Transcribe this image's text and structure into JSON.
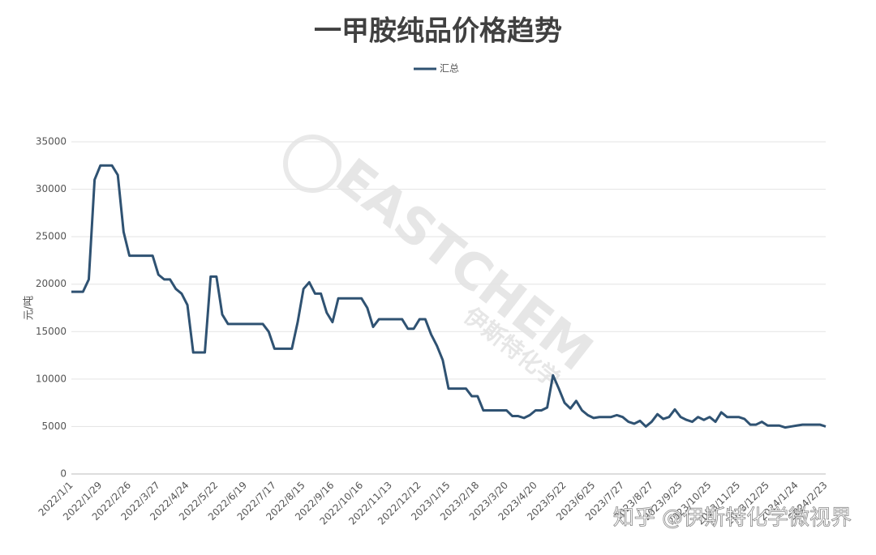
{
  "chart_data": {
    "type": "line",
    "title": "一甲胺纯品价格趋势",
    "y_label": "元/吨",
    "watermark": "EASTCHEM",
    "watermark_cn": "伊斯特化学",
    "credit": "知乎 @伊斯特化学微视界",
    "categories": [
      "2022/1/1",
      null,
      null,
      null,
      null,
      "2022/1/29",
      null,
      null,
      null,
      null,
      "2022/2/26",
      null,
      null,
      null,
      null,
      "2022/3/27",
      null,
      null,
      null,
      null,
      "2022/4/24",
      null,
      null,
      null,
      null,
      "2022/5/22",
      null,
      null,
      null,
      null,
      "2022/6/19",
      null,
      null,
      null,
      null,
      "2022/7/17",
      null,
      null,
      null,
      null,
      "2022/8/15",
      null,
      null,
      null,
      null,
      "2022/9/16",
      null,
      null,
      null,
      null,
      "2022/10/16",
      null,
      null,
      null,
      null,
      "2022/11/13",
      null,
      null,
      null,
      null,
      "2022/12/12",
      null,
      null,
      null,
      null,
      "2023/1/15",
      null,
      null,
      null,
      null,
      "2023/2/18",
      null,
      null,
      null,
      null,
      "2023/3/20",
      null,
      null,
      null,
      null,
      "2023/4/20",
      null,
      null,
      null,
      null,
      "2023/5/22",
      null,
      null,
      null,
      null,
      "2023/6/25",
      null,
      null,
      null,
      null,
      "2023/7/27",
      null,
      null,
      null,
      null,
      "2023/8/27",
      null,
      null,
      null,
      null,
      "2023/9/25",
      null,
      null,
      null,
      null,
      "2023/10/25",
      null,
      null,
      null,
      null,
      "2023/11/25",
      null,
      null,
      null,
      null,
      "2023/12/25",
      null,
      null,
      null,
      null,
      "2024/1/24",
      null,
      null,
      null,
      null,
      "2024/2/23"
    ],
    "series": [
      {
        "name": "汇总",
        "color": "#2f5272",
        "values": [
          19200,
          19200,
          19200,
          20500,
          31000,
          32500,
          32500,
          32500,
          31500,
          25500,
          23000,
          23000,
          23000,
          23000,
          23000,
          21000,
          20500,
          20500,
          19500,
          19000,
          17800,
          12800,
          12800,
          12800,
          20800,
          20800,
          16800,
          15800,
          15800,
          15800,
          15800,
          15800,
          15800,
          15800,
          15000,
          13200,
          13200,
          13200,
          13200,
          16000,
          19500,
          20200,
          19000,
          19000,
          17000,
          16000,
          18500,
          18500,
          18500,
          18500,
          18500,
          17500,
          15500,
          16300,
          16300,
          16300,
          16300,
          16300,
          15300,
          15300,
          16300,
          16300,
          14700,
          13500,
          12000,
          9000,
          9000,
          9000,
          9000,
          8200,
          8200,
          6700,
          6700,
          6700,
          6700,
          6700,
          6100,
          6100,
          5900,
          6200,
          6700,
          6700,
          7000,
          10400,
          9000,
          7500,
          6900,
          7700,
          6700,
          6200,
          5900,
          6000,
          6000,
          6000,
          6200,
          6000,
          5500,
          5300,
          5600,
          5000,
          5500,
          6300,
          5800,
          6000,
          6800,
          6000,
          5700,
          5500,
          6000,
          5700,
          6000,
          5500,
          6500,
          6000,
          6000,
          6000,
          5800,
          5200,
          5200,
          5500,
          5100,
          5100,
          5100,
          4900,
          5000,
          5100,
          5200,
          5200,
          5200,
          5200,
          5000
        ]
      }
    ],
    "ylim": [
      0,
      35000
    ],
    "yticks": [
      0,
      5000,
      10000,
      15000,
      20000,
      25000,
      30000,
      35000
    ],
    "grid": true,
    "legend": "top"
  }
}
